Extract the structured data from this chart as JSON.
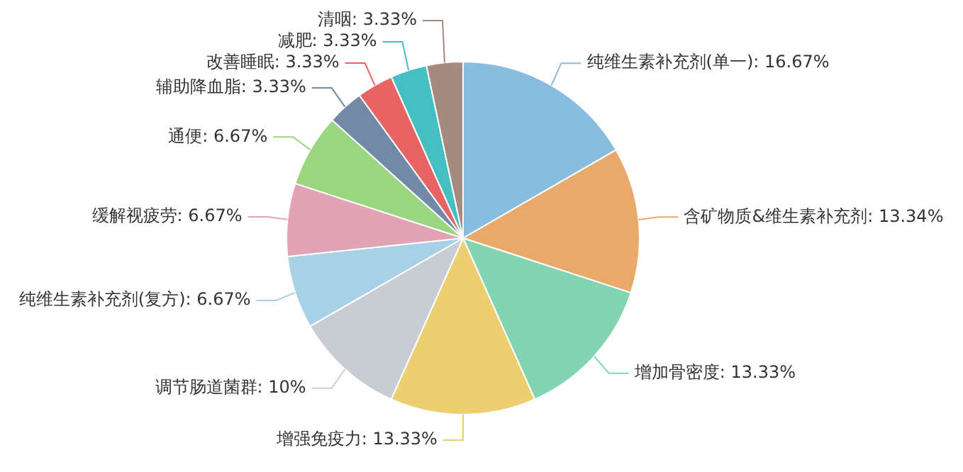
{
  "chart_data": {
    "type": "pie",
    "categories": [
      "纯维生素补充剂(单一)",
      "含矿物质&维生素补充剂",
      "增加骨密度",
      "增强免疫力",
      "调节肠道菌群",
      "纯维生素补充剂(复方)",
      "缓解视疲劳",
      "通便",
      "辅助降血脂",
      "改善睡眠",
      "减肥",
      "清咽"
    ],
    "values": [
      16.67,
      13.34,
      13.33,
      13.33,
      10,
      6.67,
      6.67,
      6.67,
      3.33,
      3.33,
      3.33,
      3.33
    ],
    "value_labels": [
      ": 16.67%",
      ": 13.34%",
      ": 13.33%",
      ": 13.33%",
      ": 10%",
      ": 6.67%",
      ": 6.67%",
      ": 6.67%",
      ": 3.33%",
      ": 3.33%",
      ": 3.33%",
      ": 3.33%"
    ],
    "colors": [
      "#88bde0",
      "#e9a96b",
      "#82d4b3",
      "#eccf6e",
      "#c8cdd3",
      "#a8d1e8",
      "#e3a3b6",
      "#99d67f",
      "#7289a8",
      "#e86463",
      "#45bfc2",
      "#a58a80"
    ],
    "legend": false
  }
}
